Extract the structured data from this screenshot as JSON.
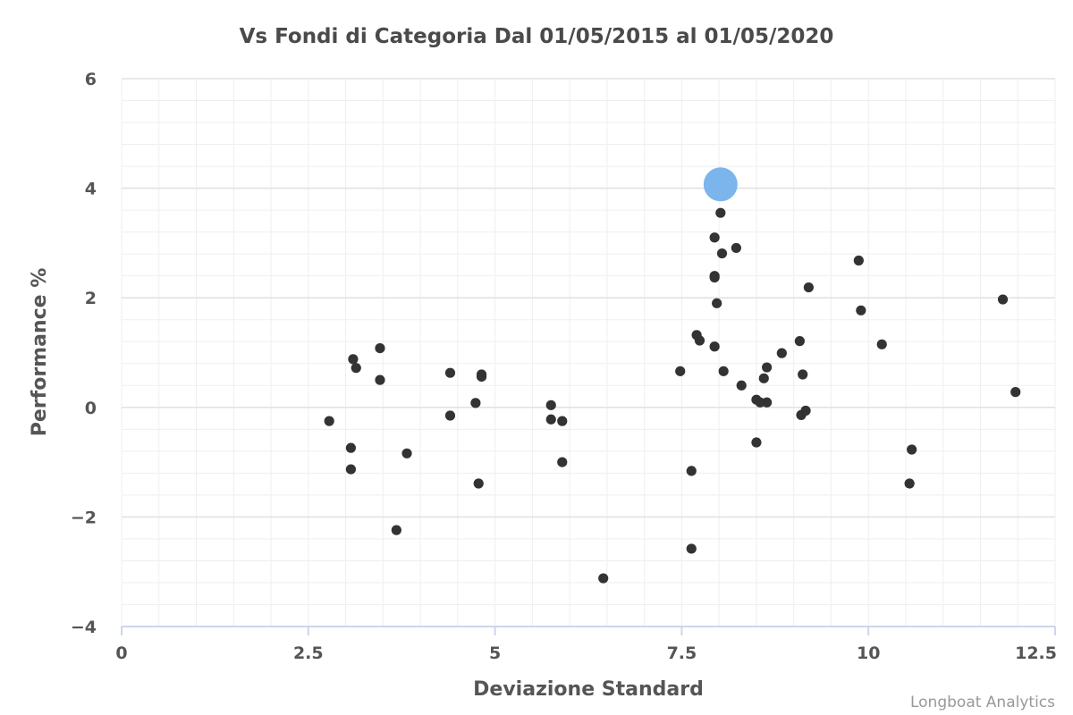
{
  "chart_data": {
    "type": "scatter",
    "title": "Vs Fondi di Categoria Dal 01/05/2015 al 01/05/2020",
    "xlabel": "Deviazione Standard",
    "ylabel": "Performance %",
    "xlim": [
      0,
      12.5
    ],
    "ylim": [
      -4,
      6
    ],
    "x_ticks": [
      "0",
      "2.5",
      "5",
      "7.5",
      "10",
      "12.5"
    ],
    "y_ticks": [
      "−4",
      "−2",
      "0",
      "2",
      "4",
      "6"
    ],
    "grid": true,
    "legend": "none",
    "credits": "Longboat Analytics",
    "series": [
      {
        "role": "highlight",
        "color": "#7cb5ec",
        "points": [
          [
            8.02,
            4.07
          ]
        ]
      },
      {
        "role": "category-funds",
        "color": "#333333",
        "points": [
          [
            2.78,
            -0.25
          ],
          [
            3.07,
            -0.74
          ],
          [
            3.07,
            -1.13
          ],
          [
            3.1,
            0.88
          ],
          [
            3.14,
            0.72
          ],
          [
            3.46,
            1.08
          ],
          [
            3.46,
            0.5
          ],
          [
            3.68,
            -2.24
          ],
          [
            3.82,
            -0.84
          ],
          [
            4.4,
            0.63
          ],
          [
            4.4,
            -0.15
          ],
          [
            4.74,
            0.08
          ],
          [
            4.78,
            -1.39
          ],
          [
            4.82,
            0.6
          ],
          [
            4.82,
            0.56
          ],
          [
            5.75,
            0.04
          ],
          [
            5.75,
            -0.22
          ],
          [
            5.9,
            -0.25
          ],
          [
            5.9,
            -1.0
          ],
          [
            6.45,
            -3.12
          ],
          [
            7.48,
            0.66
          ],
          [
            7.63,
            -1.16
          ],
          [
            7.63,
            -2.58
          ],
          [
            7.7,
            1.32
          ],
          [
            7.74,
            1.22
          ],
          [
            7.94,
            3.1
          ],
          [
            7.94,
            2.4
          ],
          [
            7.94,
            2.37
          ],
          [
            7.94,
            1.11
          ],
          [
            7.97,
            1.9
          ],
          [
            8.02,
            3.55
          ],
          [
            8.04,
            2.81
          ],
          [
            8.06,
            0.66
          ],
          [
            8.23,
            2.91
          ],
          [
            8.3,
            0.4
          ],
          [
            8.5,
            0.14
          ],
          [
            8.5,
            -0.64
          ],
          [
            8.55,
            0.09
          ],
          [
            8.6,
            0.53
          ],
          [
            8.64,
            0.73
          ],
          [
            8.64,
            0.09
          ],
          [
            8.84,
            0.99
          ],
          [
            9.08,
            1.21
          ],
          [
            9.1,
            -0.14
          ],
          [
            9.12,
            0.6
          ],
          [
            9.16,
            -0.06
          ],
          [
            9.2,
            2.19
          ],
          [
            9.87,
            2.68
          ],
          [
            9.9,
            1.77
          ],
          [
            10.18,
            1.15
          ],
          [
            10.55,
            -1.39
          ],
          [
            10.58,
            -0.77
          ],
          [
            11.8,
            1.97
          ],
          [
            11.97,
            0.28
          ]
        ]
      }
    ]
  }
}
